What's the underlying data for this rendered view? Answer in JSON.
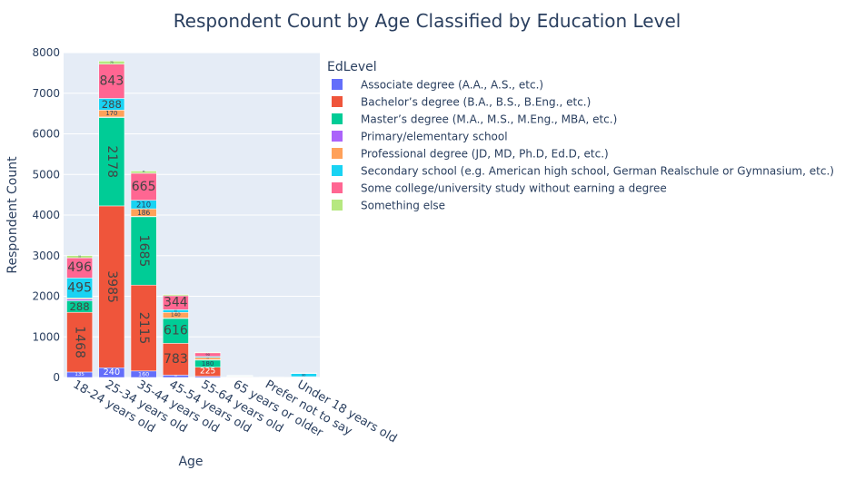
{
  "chart_data": {
    "type": "bar",
    "stacked": true,
    "title": "Respondent Count by Age Classified by Education Level",
    "xlabel": "Age",
    "ylabel": "Respondent Count",
    "ylim": [
      0,
      8000
    ],
    "yticks": [
      0,
      1000,
      2000,
      3000,
      4000,
      5000,
      6000,
      7000,
      8000
    ],
    "grid": true,
    "legend_title": "EdLevel",
    "legend_position": "right",
    "categories": [
      "18-24 years old",
      "25-34 years old",
      "35-44 years old",
      "45-54 years old",
      "55-64 years old",
      "65 years or older",
      "Prefer not to say",
      "Under 18 years old"
    ],
    "series": [
      {
        "name": "Associate degree (A.A., A.S., etc.)",
        "color": "#636efa",
        "values": [
          135,
          240,
          160,
          58,
          28,
          5,
          1,
          2
        ]
      },
      {
        "name": "Bachelor’s degree (B.A., B.S., B.Eng., etc.)",
        "color": "#ef553b",
        "values": [
          1468,
          3985,
          2115,
          783,
          225,
          15,
          2,
          5
        ]
      },
      {
        "name": "Master’s degree (M.A., M.S., M.Eng., MBA, etc.)",
        "color": "#00cc96",
        "values": [
          288,
          2178,
          1685,
          616,
          180,
          12,
          1,
          3
        ]
      },
      {
        "name": "Primary/elementary school",
        "color": "#ab63fa",
        "values": [
          40,
          12,
          8,
          6,
          4,
          1,
          0,
          10
        ]
      },
      {
        "name": "Professional degree (JD, MD, Ph.D, Ed.D, etc.)",
        "color": "#ffa15a",
        "values": [
          25,
          170,
          186,
          140,
          55,
          5,
          0,
          0
        ]
      },
      {
        "name": "Secondary school (e.g. American high school, German Realschule or Gymnasium, etc.)",
        "color": "#19d3f3",
        "values": [
          495,
          288,
          210,
          65,
          25,
          3,
          2,
          80
        ]
      },
      {
        "name": "Some college/university study without earning a degree",
        "color": "#ff6692",
        "values": [
          496,
          843,
          665,
          344,
          90,
          8,
          1,
          8
        ]
      },
      {
        "name": "Something else",
        "color": "#b6e880",
        "values": [
          55,
          75,
          55,
          30,
          15,
          3,
          1,
          4
        ]
      }
    ]
  }
}
